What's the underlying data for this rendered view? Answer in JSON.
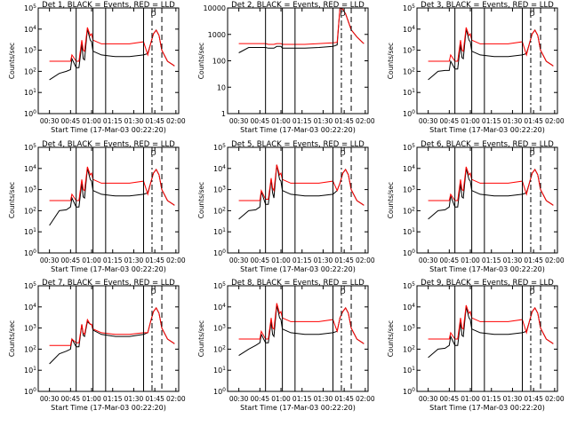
{
  "figure": {
    "background": "#ffffff",
    "colors": {
      "events": "#000000",
      "lld": "#ff0000",
      "axes": "#000000"
    },
    "y_axis_label": "Counts/sec",
    "x_axis_label": "Start Time (17-Mar-03 00:22:20)",
    "x_tick_labels": [
      "00:30",
      "00:45",
      "01:00",
      "01:15",
      "01:30",
      "01:45",
      "02:00"
    ],
    "marker_label": "D"
  },
  "chart_data": [
    {
      "type": "line",
      "title": "Det 1, BLACK = Events, RED = LLD",
      "xlabel": "Start Time (17-Mar-03 00:22:20)",
      "ylabel": "Counts/sec",
      "y_scale": "log",
      "ylim": [
        1,
        100000
      ],
      "y_tick_labels": [
        "10^0",
        "10^1",
        "10^2",
        "10^3",
        "10^4",
        "10^5"
      ],
      "x_minutes_from_start": [
        8,
        15,
        20,
        23,
        24,
        27,
        29,
        31,
        32,
        33,
        35,
        37,
        38,
        39,
        45,
        55,
        65,
        75,
        78,
        80,
        82,
        84,
        86,
        88,
        92,
        96,
        97
      ],
      "series": [
        {
          "name": "Events",
          "color": "#000000",
          "values": [
            40,
            80,
            100,
            120,
            400,
            150,
            150,
            2000,
            400,
            350,
            10000,
            3000,
            2500,
            900,
            600,
            500,
            500,
            600,
            700,
            2000,
            6000,
            9000,
            5000,
            1000,
            300,
            200,
            180
          ]
        },
        {
          "name": "LLD",
          "color": "#ff0000",
          "values": [
            300,
            300,
            300,
            300,
            600,
            300,
            300,
            3000,
            1000,
            900,
            12000,
            5000,
            6000,
            3000,
            2000,
            2000,
            2000,
            2500,
            600,
            2000,
            6000,
            9000,
            5000,
            1000,
            300,
            200,
            180
          ]
        }
      ]
    },
    {
      "type": "line",
      "title": "Det 2, BLACK = Events, RED = LLD",
      "xlabel": "Start Time (17-Mar-03 00:22:20)",
      "ylabel": "Counts/sec",
      "y_scale": "log",
      "ylim": [
        1,
        10000
      ],
      "y_tick_labels": [
        "1",
        "10",
        "100",
        "1000",
        "10000"
      ],
      "x_minutes_from_start": [
        8,
        15,
        20,
        23,
        24,
        27,
        29,
        31,
        32,
        33,
        35,
        37,
        38,
        39,
        45,
        55,
        65,
        75,
        78,
        80,
        82,
        84,
        86,
        88,
        92,
        96,
        97
      ],
      "series": [
        {
          "name": "Events",
          "color": "#000000",
          "values": [
            200,
            320,
            320,
            320,
            320,
            320,
            300,
            300,
            300,
            300,
            350,
            350,
            350,
            300,
            300,
            300,
            320,
            350,
            400,
            10000,
            9000,
            6000,
            3000,
            1500,
            800,
            500,
            450
          ]
        },
        {
          "name": "LLD",
          "color": "#ff0000",
          "values": [
            450,
            450,
            450,
            450,
            450,
            450,
            420,
            420,
            420,
            420,
            450,
            450,
            450,
            420,
            420,
            420,
            450,
            480,
            500,
            10000,
            9000,
            6000,
            3000,
            1500,
            800,
            500,
            450
          ]
        }
      ]
    },
    {
      "type": "line",
      "title": "Det 3, BLACK = Events, RED = LLD",
      "xlabel": "Start Time (17-Mar-03 00:22:20)",
      "ylabel": "Counts/sec",
      "y_scale": "log",
      "ylim": [
        1,
        100000
      ],
      "y_tick_labels": [
        "10^0",
        "10^1",
        "10^2",
        "10^3",
        "10^4",
        "10^5"
      ],
      "x_minutes_from_start": [
        8,
        15,
        20,
        23,
        24,
        27,
        29,
        31,
        32,
        33,
        35,
        37,
        38,
        39,
        45,
        55,
        65,
        75,
        78,
        80,
        82,
        84,
        86,
        88,
        92,
        96,
        97
      ],
      "series": [
        {
          "name": "Events",
          "color": "#000000",
          "values": [
            40,
            100,
            110,
            110,
            300,
            130,
            130,
            2000,
            450,
            400,
            10000,
            3000,
            2500,
            900,
            600,
            500,
            500,
            600,
            700,
            2000,
            6000,
            9000,
            5000,
            1000,
            300,
            200,
            180
          ]
        },
        {
          "name": "LLD",
          "color": "#ff0000",
          "values": [
            300,
            300,
            300,
            300,
            600,
            300,
            300,
            3000,
            1000,
            900,
            12000,
            5000,
            6000,
            3000,
            2000,
            2000,
            2000,
            2500,
            600,
            2000,
            6000,
            9000,
            5000,
            1000,
            300,
            200,
            180
          ]
        }
      ]
    },
    {
      "type": "line",
      "title": "Det 4, BLACK = Events, RED = LLD",
      "xlabel": "Start Time (17-Mar-03 00:22:20)",
      "ylabel": "Counts/sec",
      "y_scale": "log",
      "ylim": [
        1,
        100000
      ],
      "y_tick_labels": [
        "10^0",
        "10^1",
        "10^2",
        "10^3",
        "10^4",
        "10^5"
      ],
      "x_minutes_from_start": [
        8,
        15,
        20,
        23,
        24,
        27,
        29,
        31,
        32,
        33,
        35,
        37,
        38,
        39,
        45,
        55,
        65,
        75,
        78,
        80,
        82,
        84,
        86,
        88,
        92,
        96,
        97
      ],
      "series": [
        {
          "name": "Events",
          "color": "#000000",
          "values": [
            20,
            100,
            110,
            150,
            400,
            150,
            150,
            2000,
            450,
            400,
            10000,
            3000,
            2500,
            900,
            600,
            500,
            500,
            600,
            700,
            2000,
            6000,
            9000,
            5000,
            1000,
            300,
            200,
            180
          ]
        },
        {
          "name": "LLD",
          "color": "#ff0000",
          "values": [
            300,
            300,
            300,
            300,
            600,
            300,
            300,
            3000,
            1000,
            900,
            12000,
            5000,
            6000,
            3000,
            2000,
            2000,
            2000,
            2500,
            600,
            2000,
            6000,
            9000,
            5000,
            1000,
            300,
            200,
            180
          ]
        }
      ]
    },
    {
      "type": "line",
      "title": "Det 5, BLACK = Events, RED = LLD",
      "xlabel": "Start Time (17-Mar-03 00:22:20)",
      "ylabel": "Counts/sec",
      "y_scale": "log",
      "ylim": [
        1,
        100000
      ],
      "y_tick_labels": [
        "10^0",
        "10^1",
        "10^2",
        "10^3",
        "10^4",
        "10^5"
      ],
      "x_minutes_from_start": [
        8,
        15,
        20,
        23,
        24,
        27,
        29,
        31,
        32,
        33,
        35,
        37,
        38,
        39,
        45,
        55,
        65,
        75,
        78,
        80,
        82,
        84,
        86,
        88,
        92,
        96,
        97
      ],
      "series": [
        {
          "name": "Events",
          "color": "#000000",
          "values": [
            40,
            100,
            110,
            150,
            800,
            200,
            200,
            3000,
            700,
            400,
            15000,
            3000,
            2500,
            900,
            600,
            500,
            500,
            600,
            900,
            2000,
            6000,
            9000,
            5000,
            1000,
            300,
            200,
            180
          ]
        },
        {
          "name": "LLD",
          "color": "#ff0000",
          "values": [
            300,
            300,
            300,
            300,
            900,
            350,
            350,
            3500,
            1200,
            900,
            15000,
            5000,
            6000,
            3000,
            2000,
            2000,
            2000,
            2500,
            900,
            2000,
            6000,
            9000,
            5000,
            1000,
            300,
            200,
            180
          ]
        }
      ]
    },
    {
      "type": "line",
      "title": "Det 6, BLACK = Events, RED = LLD",
      "xlabel": "Start Time (17-Mar-03 00:22:20)",
      "ylabel": "Counts/sec",
      "y_scale": "log",
      "ylim": [
        1,
        100000
      ],
      "y_tick_labels": [
        "10^0",
        "10^1",
        "10^2",
        "10^3",
        "10^4",
        "10^5"
      ],
      "x_minutes_from_start": [
        8,
        15,
        20,
        23,
        24,
        27,
        29,
        31,
        32,
        33,
        35,
        37,
        38,
        39,
        45,
        55,
        65,
        75,
        78,
        80,
        82,
        84,
        86,
        88,
        92,
        96,
        97
      ],
      "series": [
        {
          "name": "Events",
          "color": "#000000",
          "values": [
            40,
            100,
            110,
            150,
            500,
            150,
            150,
            2000,
            450,
            400,
            10000,
            3000,
            2500,
            900,
            600,
            500,
            500,
            600,
            700,
            2000,
            6000,
            9000,
            5000,
            1000,
            300,
            200,
            180
          ]
        },
        {
          "name": "LLD",
          "color": "#ff0000",
          "values": [
            300,
            300,
            300,
            300,
            600,
            300,
            300,
            3000,
            1000,
            900,
            12000,
            5000,
            6000,
            3000,
            2000,
            2000,
            2000,
            2500,
            600,
            2000,
            6000,
            9000,
            5000,
            1000,
            300,
            200,
            180
          ]
        }
      ]
    },
    {
      "type": "line",
      "title": "Det 7, BLACK = Events, RED = LLD",
      "xlabel": "Start Time (17-Mar-03 00:22:20)",
      "ylabel": "Counts/sec",
      "y_scale": "log",
      "ylim": [
        1,
        100000
      ],
      "y_tick_labels": [
        "10^0",
        "10^1",
        "10^2",
        "10^3",
        "10^4",
        "10^5"
      ],
      "x_minutes_from_start": [
        8,
        15,
        20,
        23,
        24,
        27,
        29,
        31,
        32,
        33,
        35,
        37,
        38,
        39,
        45,
        55,
        65,
        75,
        78,
        80,
        82,
        84,
        86,
        88,
        92,
        96,
        97
      ],
      "series": [
        {
          "name": "Events",
          "color": "#000000",
          "values": [
            20,
            60,
            80,
            100,
            300,
            130,
            130,
            1500,
            450,
            400,
            2000,
            1500,
            1500,
            800,
            500,
            400,
            400,
            500,
            600,
            2000,
            6000,
            9000,
            5000,
            1000,
            300,
            200,
            180
          ]
        },
        {
          "name": "LLD",
          "color": "#ff0000",
          "values": [
            150,
            150,
            150,
            150,
            300,
            200,
            200,
            1500,
            600,
            500,
            2500,
            1500,
            1500,
            900,
            600,
            500,
            500,
            600,
            600,
            2000,
            6000,
            9000,
            5000,
            1000,
            300,
            200,
            180
          ]
        }
      ]
    },
    {
      "type": "line",
      "title": "Det 8, BLACK = Events, RED = LLD",
      "xlabel": "Start Time (17-Mar-03 00:22:20)",
      "ylabel": "Counts/sec",
      "y_scale": "log",
      "ylim": [
        1,
        100000
      ],
      "y_tick_labels": [
        "10^0",
        "10^1",
        "10^2",
        "10^3",
        "10^4",
        "10^5"
      ],
      "x_minutes_from_start": [
        8,
        15,
        20,
        23,
        24,
        27,
        29,
        31,
        32,
        33,
        35,
        37,
        38,
        39,
        45,
        55,
        65,
        75,
        78,
        80,
        82,
        84,
        86,
        88,
        92,
        96,
        97
      ],
      "series": [
        {
          "name": "Events",
          "color": "#000000",
          "values": [
            50,
            100,
            150,
            200,
            500,
            200,
            200,
            2000,
            500,
            400,
            12000,
            3000,
            2500,
            900,
            600,
            500,
            500,
            600,
            700,
            3000,
            6000,
            9000,
            5000,
            1000,
            300,
            200,
            180
          ]
        },
        {
          "name": "LLD",
          "color": "#ff0000",
          "values": [
            300,
            300,
            300,
            300,
            700,
            300,
            300,
            3000,
            1000,
            900,
            15000,
            5000,
            6000,
            3000,
            2000,
            2000,
            2000,
            2500,
            700,
            3000,
            6000,
            9000,
            5000,
            1000,
            300,
            200,
            180
          ]
        }
      ]
    },
    {
      "type": "line",
      "title": "Det 9, BLACK = Events, RED = LLD",
      "xlabel": "Start Time (17-Mar-03 00:22:20)",
      "ylabel": "Counts/sec",
      "y_scale": "log",
      "ylim": [
        1,
        100000
      ],
      "y_tick_labels": [
        "10^0",
        "10^1",
        "10^2",
        "10^3",
        "10^4",
        "10^5"
      ],
      "x_minutes_from_start": [
        8,
        15,
        20,
        23,
        24,
        27,
        29,
        31,
        32,
        33,
        35,
        37,
        38,
        39,
        45,
        55,
        65,
        75,
        78,
        80,
        82,
        84,
        86,
        88,
        92,
        96,
        97
      ],
      "series": [
        {
          "name": "Events",
          "color": "#000000",
          "values": [
            40,
            100,
            110,
            150,
            400,
            150,
            150,
            2000,
            450,
            400,
            10000,
            3000,
            2500,
            900,
            600,
            500,
            500,
            600,
            700,
            2000,
            6000,
            9000,
            5000,
            1000,
            300,
            200,
            180
          ]
        },
        {
          "name": "LLD",
          "color": "#ff0000",
          "values": [
            300,
            300,
            300,
            300,
            600,
            300,
            300,
            3000,
            1000,
            900,
            12000,
            5000,
            6000,
            3000,
            2000,
            2000,
            2000,
            2500,
            600,
            2000,
            6000,
            9000,
            5000,
            1000,
            300,
            200,
            180
          ]
        }
      ]
    }
  ]
}
